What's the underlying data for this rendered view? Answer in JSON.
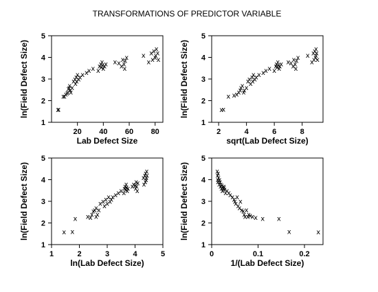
{
  "title": "TRANSFORMATIONS OF PREDICTOR VARIABLE",
  "chart_data": [
    {
      "type": "scatter",
      "xlabel": "Lab Defect Size",
      "ylabel": "ln(Field Defect Size)",
      "xlim": [
        0,
        86
      ],
      "ylim": [
        1,
        5
      ],
      "xticks": [
        "20",
        "40",
        "60",
        "80"
      ],
      "xtick_values": [
        20,
        40,
        60,
        80
      ],
      "yticks": [
        "1",
        "2",
        "3",
        "4",
        "5"
      ],
      "ytick_values": [
        1,
        2,
        3,
        4,
        5
      ],
      "marker": "x",
      "points": [
        [
          4.9,
          1.59
        ],
        [
          5.5,
          1.61
        ],
        [
          9,
          2.2
        ],
        [
          10,
          2.2
        ],
        [
          11,
          2.3
        ],
        [
          12,
          2.35
        ],
        [
          12.5,
          2.4
        ],
        [
          13,
          2.55
        ],
        [
          13.5,
          2.6
        ],
        [
          14,
          2.7
        ],
        [
          14.5,
          2.5
        ],
        [
          15,
          2.4
        ],
        [
          16,
          2.6
        ],
        [
          17,
          2.9
        ],
        [
          18,
          3.0
        ],
        [
          18.5,
          2.8
        ],
        [
          19,
          3.1
        ],
        [
          19.5,
          2.9
        ],
        [
          20,
          3.2
        ],
        [
          21,
          3.0
        ],
        [
          22,
          3.1
        ],
        [
          24,
          3.2
        ],
        [
          27,
          3.3
        ],
        [
          29,
          3.4
        ],
        [
          32,
          3.5
        ],
        [
          36,
          3.4
        ],
        [
          37,
          3.6
        ],
        [
          38,
          3.7
        ],
        [
          38.5,
          3.55
        ],
        [
          39,
          3.8
        ],
        [
          39.5,
          3.65
        ],
        [
          40,
          3.5
        ],
        [
          41,
          3.6
        ],
        [
          42,
          3.7
        ],
        [
          49,
          3.8
        ],
        [
          52,
          3.75
        ],
        [
          54,
          3.6
        ],
        [
          55,
          3.9
        ],
        [
          56,
          3.7
        ],
        [
          56.5,
          3.5
        ],
        [
          57,
          3.85
        ],
        [
          58,
          4.0
        ],
        [
          71,
          4.1
        ],
        [
          75,
          3.8
        ],
        [
          77,
          4.2
        ],
        [
          78,
          3.9
        ],
        [
          79,
          4.3
        ],
        [
          80,
          4.0
        ],
        [
          80.5,
          4.1
        ],
        [
          81,
          4.4
        ],
        [
          82,
          4.2
        ],
        [
          82.5,
          3.9
        ]
      ]
    },
    {
      "type": "scatter",
      "xlabel": "sqrt(Lab Defect Size)",
      "ylabel": "ln(Field Defect Size)",
      "xlim": [
        1.5,
        9.5
      ],
      "ylim": [
        1,
        5
      ],
      "xticks": [
        "2",
        "4",
        "6",
        "8"
      ],
      "xtick_values": [
        2,
        4,
        6,
        8
      ],
      "yticks": [
        "1",
        "2",
        "3",
        "4",
        "5"
      ],
      "ytick_values": [
        1,
        2,
        3,
        4,
        5
      ],
      "marker": "x",
      "points": [
        [
          2.2,
          1.59
        ],
        [
          2.35,
          1.61
        ],
        [
          2.7,
          2.2
        ],
        [
          3.1,
          2.25
        ],
        [
          3.3,
          2.3
        ],
        [
          3.45,
          2.4
        ],
        [
          3.55,
          2.5
        ],
        [
          3.6,
          2.6
        ],
        [
          3.7,
          2.7
        ],
        [
          3.8,
          2.4
        ],
        [
          3.85,
          2.5
        ],
        [
          4.0,
          2.6
        ],
        [
          4.1,
          2.9
        ],
        [
          4.2,
          3.0
        ],
        [
          4.3,
          2.8
        ],
        [
          4.4,
          3.1
        ],
        [
          4.45,
          2.9
        ],
        [
          4.5,
          3.2
        ],
        [
          4.6,
          3.0
        ],
        [
          4.7,
          3.1
        ],
        [
          4.9,
          3.2
        ],
        [
          5.2,
          3.3
        ],
        [
          5.4,
          3.4
        ],
        [
          5.65,
          3.5
        ],
        [
          6.0,
          3.4
        ],
        [
          6.1,
          3.6
        ],
        [
          6.15,
          3.7
        ],
        [
          6.2,
          3.55
        ],
        [
          6.25,
          3.8
        ],
        [
          6.3,
          3.65
        ],
        [
          6.35,
          3.5
        ],
        [
          6.4,
          3.6
        ],
        [
          6.5,
          3.7
        ],
        [
          7.0,
          3.8
        ],
        [
          7.2,
          3.75
        ],
        [
          7.35,
          3.6
        ],
        [
          7.4,
          3.9
        ],
        [
          7.5,
          3.7
        ],
        [
          7.55,
          3.5
        ],
        [
          7.6,
          3.85
        ],
        [
          7.7,
          4.0
        ],
        [
          8.4,
          4.1
        ],
        [
          8.7,
          3.8
        ],
        [
          8.8,
          4.2
        ],
        [
          8.85,
          3.9
        ],
        [
          8.9,
          4.3
        ],
        [
          8.95,
          4.0
        ],
        [
          9.0,
          4.1
        ],
        [
          9.0,
          4.4
        ],
        [
          9.05,
          4.2
        ],
        [
          9.1,
          3.9
        ]
      ]
    },
    {
      "type": "scatter",
      "xlabel": "ln(Lab Defect Size)",
      "ylabel": "ln(Field Defect Size)",
      "xlim": [
        1,
        5
      ],
      "ylim": [
        1,
        5
      ],
      "xticks": [
        "1",
        "2",
        "3",
        "4",
        "5"
      ],
      "xtick_values": [
        1,
        2,
        3,
        4,
        5
      ],
      "yticks": [
        "1",
        "2",
        "3",
        "4",
        "5"
      ],
      "ytick_values": [
        1,
        2,
        3,
        4,
        5
      ],
      "marker": "x",
      "points": [
        [
          1.45,
          1.59
        ],
        [
          1.75,
          1.61
        ],
        [
          1.85,
          2.2
        ],
        [
          2.3,
          2.3
        ],
        [
          2.4,
          2.25
        ],
        [
          2.45,
          2.4
        ],
        [
          2.5,
          2.55
        ],
        [
          2.55,
          2.6
        ],
        [
          2.6,
          2.7
        ],
        [
          2.6,
          2.3
        ],
        [
          2.65,
          2.4
        ],
        [
          2.7,
          2.6
        ],
        [
          2.75,
          2.9
        ],
        [
          2.85,
          3.0
        ],
        [
          2.9,
          2.8
        ],
        [
          2.95,
          3.1
        ],
        [
          3.0,
          2.9
        ],
        [
          3.05,
          3.2
        ],
        [
          3.1,
          3.0
        ],
        [
          3.15,
          3.1
        ],
        [
          3.2,
          3.2
        ],
        [
          3.3,
          3.3
        ],
        [
          3.4,
          3.4
        ],
        [
          3.5,
          3.5
        ],
        [
          3.6,
          3.4
        ],
        [
          3.62,
          3.6
        ],
        [
          3.64,
          3.7
        ],
        [
          3.66,
          3.55
        ],
        [
          3.68,
          3.8
        ],
        [
          3.7,
          3.65
        ],
        [
          3.72,
          3.5
        ],
        [
          3.75,
          3.6
        ],
        [
          3.9,
          3.7
        ],
        [
          3.95,
          3.8
        ],
        [
          4.0,
          3.75
        ],
        [
          4.02,
          3.6
        ],
        [
          4.04,
          3.9
        ],
        [
          4.06,
          3.7
        ],
        [
          4.08,
          3.5
        ],
        [
          4.1,
          3.85
        ],
        [
          4.3,
          4.1
        ],
        [
          4.32,
          3.8
        ],
        [
          4.35,
          4.2
        ],
        [
          4.37,
          3.9
        ],
        [
          4.38,
          4.3
        ],
        [
          4.4,
          4.0
        ],
        [
          4.41,
          4.1
        ],
        [
          4.42,
          4.4
        ],
        [
          4.43,
          4.2
        ]
      ]
    },
    {
      "type": "scatter",
      "xlabel": "1/(Lab Defect Size)",
      "ylabel": "ln(Field Defect Size)",
      "xlim": [
        0,
        0.24
      ],
      "ylim": [
        1,
        5
      ],
      "xticks": [
        "0",
        "0.1",
        "0.2"
      ],
      "xtick_values": [
        0,
        0.1,
        0.2
      ],
      "yticks": [
        "1",
        "2",
        "3",
        "4",
        "5"
      ],
      "ytick_values": [
        1,
        2,
        3,
        4,
        5
      ],
      "marker": "x",
      "points": [
        [
          0.012,
          4.4
        ],
        [
          0.0125,
          4.2
        ],
        [
          0.013,
          4.0
        ],
        [
          0.0135,
          3.9
        ],
        [
          0.014,
          4.3
        ],
        [
          0.015,
          4.1
        ],
        [
          0.016,
          3.8
        ],
        [
          0.017,
          4.0
        ],
        [
          0.018,
          3.9
        ],
        [
          0.019,
          3.7
        ],
        [
          0.02,
          3.8
        ],
        [
          0.021,
          3.6
        ],
        [
          0.022,
          3.75
        ],
        [
          0.023,
          3.5
        ],
        [
          0.025,
          3.6
        ],
        [
          0.026,
          3.7
        ],
        [
          0.027,
          3.65
        ],
        [
          0.028,
          3.55
        ],
        [
          0.03,
          3.4
        ],
        [
          0.033,
          3.5
        ],
        [
          0.037,
          3.4
        ],
        [
          0.04,
          3.3
        ],
        [
          0.045,
          3.2
        ],
        [
          0.048,
          3.1
        ],
        [
          0.05,
          3.0
        ],
        [
          0.052,
          2.9
        ],
        [
          0.055,
          3.2
        ],
        [
          0.057,
          2.8
        ],
        [
          0.06,
          2.7
        ],
        [
          0.062,
          3.0
        ],
        [
          0.065,
          2.6
        ],
        [
          0.068,
          2.55
        ],
        [
          0.07,
          2.4
        ],
        [
          0.072,
          2.3
        ],
        [
          0.075,
          2.6
        ],
        [
          0.078,
          2.3
        ],
        [
          0.08,
          2.4
        ],
        [
          0.083,
          2.35
        ],
        [
          0.088,
          2.3
        ],
        [
          0.095,
          2.25
        ],
        [
          0.11,
          2.2
        ],
        [
          0.145,
          2.2
        ],
        [
          0.167,
          1.61
        ],
        [
          0.23,
          1.59
        ]
      ]
    }
  ]
}
